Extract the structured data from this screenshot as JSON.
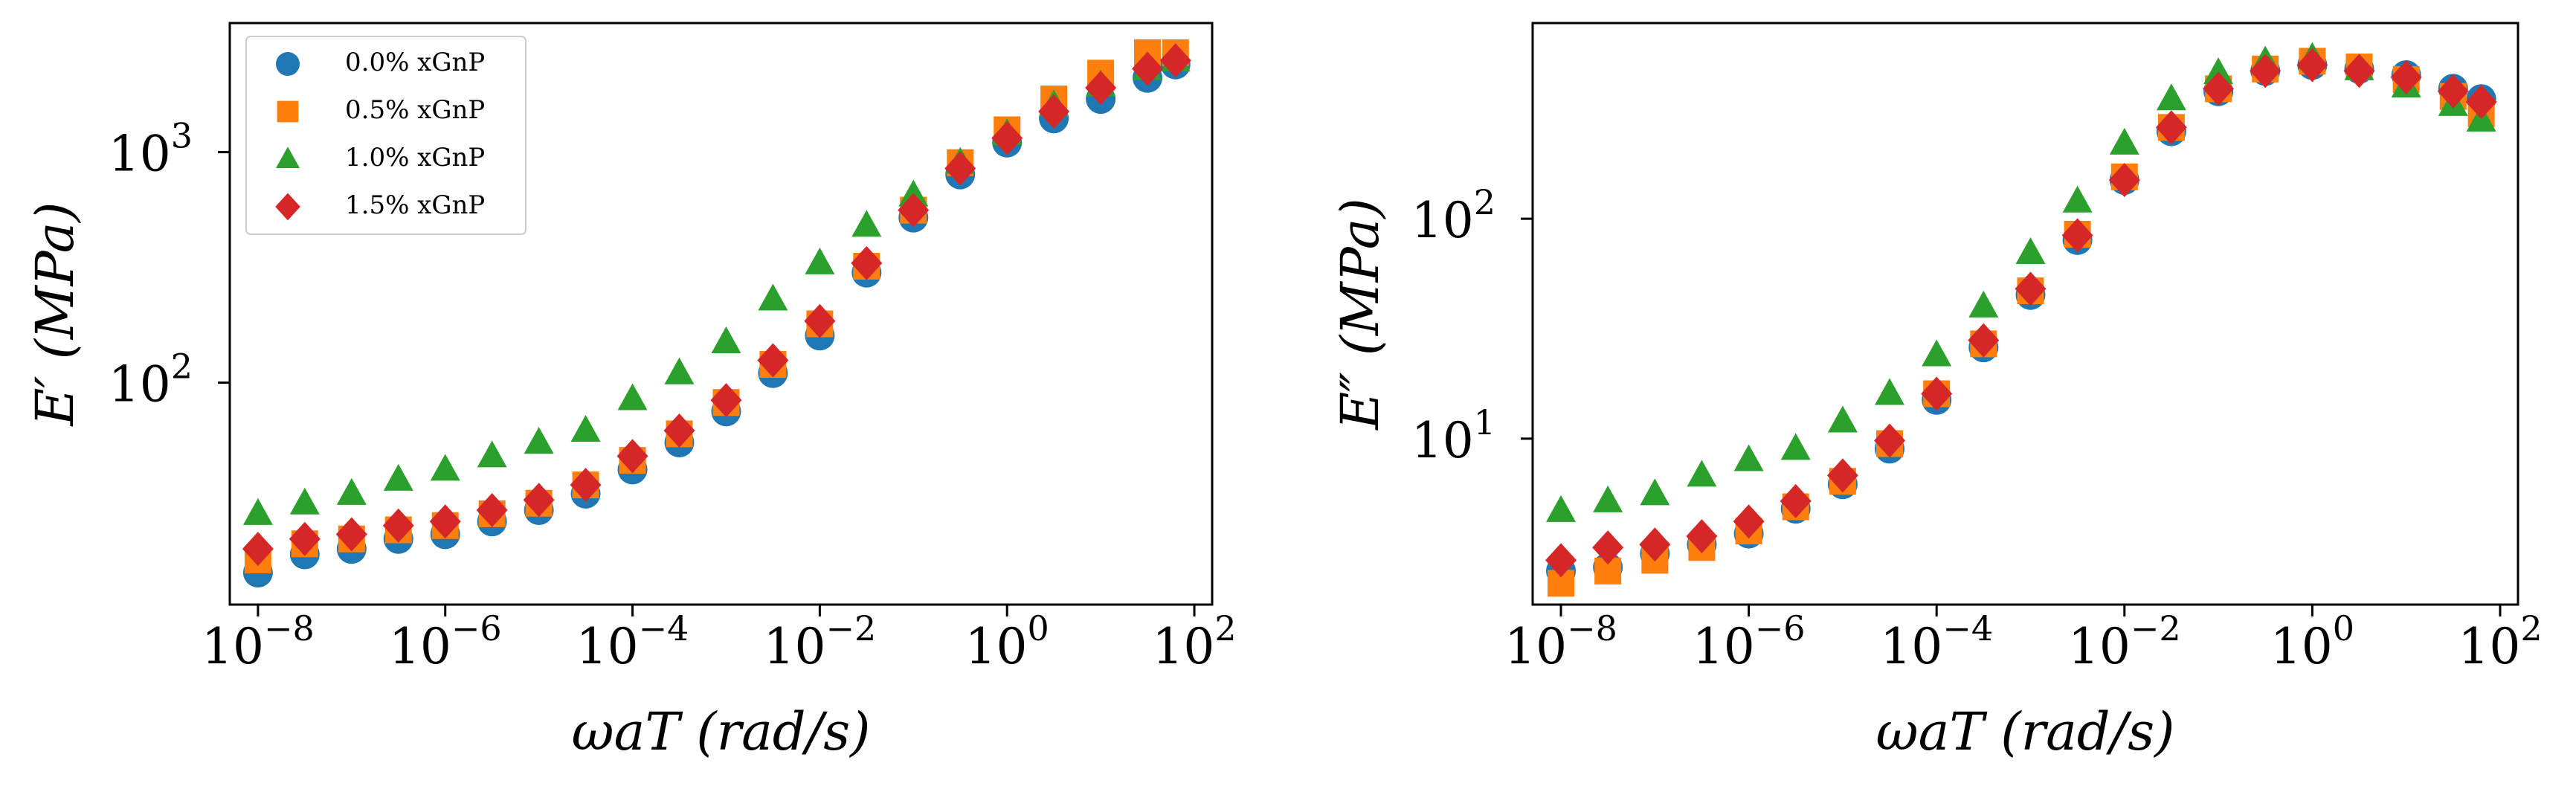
{
  "chart_data": [
    {
      "type": "scatter",
      "xlabel": "ωaT (rad/s)",
      "ylabel": "E′ (MPa)",
      "xscale": "log",
      "yscale": "log",
      "legend": "upper left",
      "xlim": [
        5e-09,
        155
      ],
      "ylim": [
        10.9,
        3630
      ],
      "xticks": [
        {
          "value": 1e-08,
          "label": "10",
          "exponent": "−8"
        },
        {
          "value": 1e-06,
          "label": "10",
          "exponent": "−6"
        },
        {
          "value": 0.0001,
          "label": "10",
          "exponent": "−4"
        },
        {
          "value": 0.01,
          "label": "10",
          "exponent": "−2"
        },
        {
          "value": 1,
          "label": "10",
          "exponent": "0"
        },
        {
          "value": 100,
          "label": "10",
          "exponent": "2"
        }
      ],
      "yticks": [
        {
          "value": 100,
          "label": "10",
          "exponent": "2"
        },
        {
          "value": 1000,
          "label": "10",
          "exponent": "3"
        }
      ],
      "x": [
        1e-08,
        3.16e-08,
        1e-07,
        3.16e-07,
        1e-06,
        3.16e-06,
        1e-05,
        3.16e-05,
        0.0001,
        0.000316,
        0.001,
        0.00316,
        0.01,
        0.0316,
        0.1,
        0.316,
        1,
        3.16,
        10,
        31.6,
        63
      ],
      "series": [
        {
          "name": "0.0% xGnP",
          "color": "#1f77b4",
          "marker": "circle",
          "values": [
            15,
            18,
            19,
            21,
            22,
            25,
            28,
            33,
            42,
            55,
            75,
            110,
            160,
            300,
            520,
            800,
            1100,
            1400,
            1700,
            2100,
            2400
          ]
        },
        {
          "name": "0.5% xGnP",
          "color": "#ff7f0e",
          "marker": "square",
          "values": [
            17,
            20,
            21,
            23,
            24,
            27,
            30,
            36,
            46,
            60,
            82,
            120,
            180,
            320,
            560,
            900,
            1250,
            1700,
            2200,
            2700,
            2700
          ]
        },
        {
          "name": "1.0% xGnP",
          "color": "#2ca02c",
          "marker": "triangle",
          "values": [
            27,
            30,
            33,
            38,
            42,
            48,
            55,
            62,
            85,
            110,
            150,
            230,
            330,
            480,
            650,
            900,
            1200,
            1600,
            1950,
            2300,
            2500
          ]
        },
        {
          "name": "1.5% xGnP",
          "color": "#d62728",
          "marker": "diamond",
          "values": [
            19,
            21,
            22,
            24,
            25,
            28,
            31,
            36,
            48,
            62,
            84,
            125,
            185,
            330,
            560,
            850,
            1150,
            1500,
            1900,
            2300,
            2500
          ]
        }
      ]
    },
    {
      "type": "scatter",
      "xlabel": "ωaT (rad/s)",
      "ylabel": "E″ (MPa)",
      "xscale": "log",
      "yscale": "log",
      "xlim": [
        5e-09,
        155
      ],
      "ylim": [
        1.76,
        776
      ],
      "xticks": [
        {
          "value": 1e-08,
          "label": "10",
          "exponent": "−8"
        },
        {
          "value": 1e-06,
          "label": "10",
          "exponent": "−6"
        },
        {
          "value": 0.0001,
          "label": "10",
          "exponent": "−4"
        },
        {
          "value": 0.01,
          "label": "10",
          "exponent": "−2"
        },
        {
          "value": 1,
          "label": "10",
          "exponent": "0"
        },
        {
          "value": 100,
          "label": "10",
          "exponent": "2"
        }
      ],
      "yticks": [
        {
          "value": 10,
          "label": "10",
          "exponent": "1"
        },
        {
          "value": 100,
          "label": "10",
          "exponent": "2"
        }
      ],
      "x": [
        1e-08,
        3.16e-08,
        1e-07,
        3.16e-07,
        1e-06,
        3.16e-06,
        1e-05,
        3.16e-05,
        0.0001,
        0.000316,
        0.001,
        0.00316,
        0.01,
        0.0316,
        0.1,
        0.316,
        1,
        3.16,
        10,
        31.6,
        63
      ],
      "series": [
        {
          "color": "#1f77b4",
          "marker": "circle",
          "values": [
            2.5,
            2.6,
            3.0,
            3.3,
            3.7,
            4.8,
            6.2,
            9,
            15,
            26,
            45,
            80,
            150,
            250,
            380,
            470,
            500,
            480,
            450,
            390,
            350
          ]
        },
        {
          "color": "#ff7f0e",
          "marker": "square",
          "values": [
            2.2,
            2.5,
            2.8,
            3.2,
            3.8,
            4.9,
            6.4,
            9.5,
            16,
            27,
            47,
            85,
            155,
            260,
            390,
            480,
            520,
            490,
            430,
            360,
            300
          ]
        },
        {
          "color": "#2ca02c",
          "marker": "triangle",
          "values": [
            4.7,
            5.2,
            5.6,
            6.8,
            8,
            9,
            12,
            16,
            24,
            40,
            70,
            120,
            220,
            350,
            460,
            520,
            540,
            480,
            400,
            330,
            280
          ]
        },
        {
          "color": "#d62728",
          "marker": "diamond",
          "values": [
            2.8,
            3.2,
            3.3,
            3.6,
            4.2,
            5.2,
            6.8,
            9.8,
            16,
            28,
            48,
            84,
            150,
            260,
            390,
            470,
            500,
            470,
            440,
            380,
            340
          ]
        }
      ]
    }
  ]
}
